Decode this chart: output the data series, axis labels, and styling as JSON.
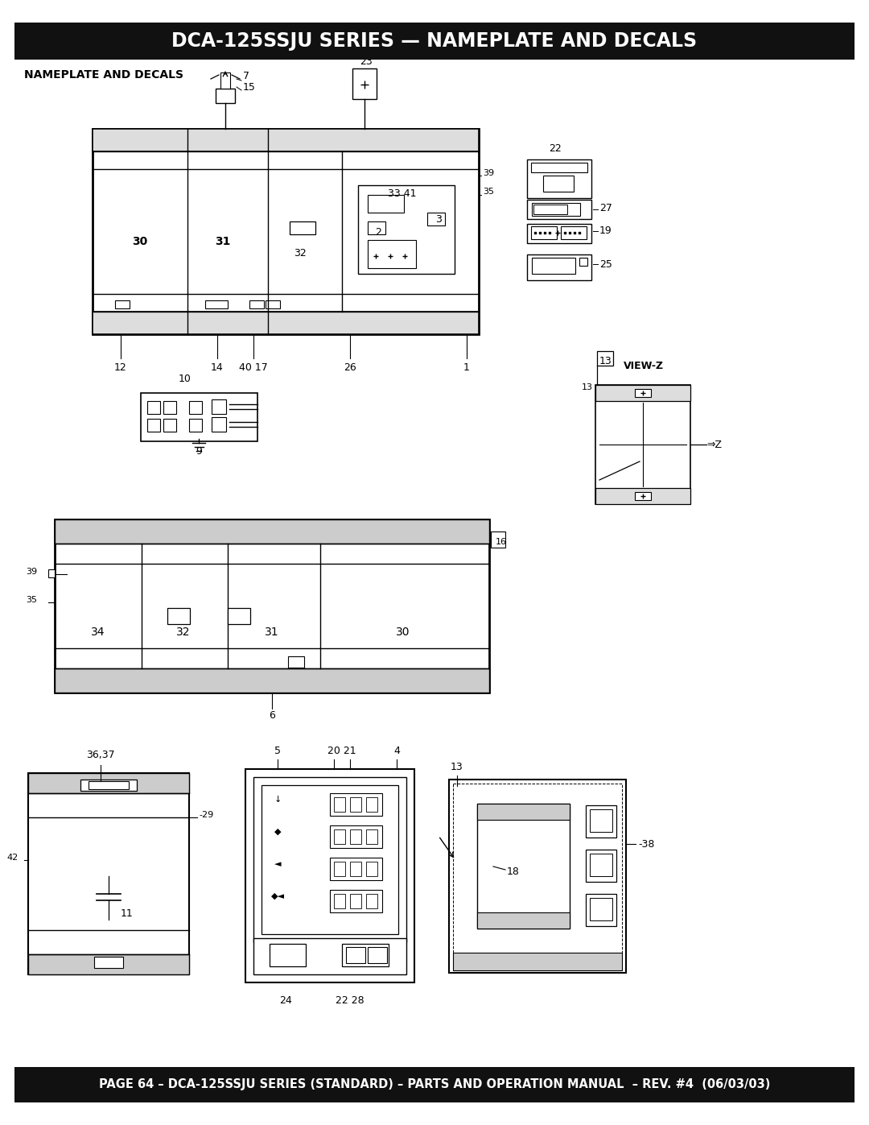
{
  "title": "DCA-125SSJU SERIES — NAMEPLATE AND DECALS",
  "subtitle": "NAMEPLATE AND DECALS",
  "footer": "PAGE 64 – DCA-125SSJU SERIES (STANDARD) – PARTS AND OPERATION MANUAL  – REV. #4  (06/03/03)",
  "bg_color": "#ffffff",
  "header_bg": "#111111",
  "header_fg": "#ffffff",
  "footer_bg": "#111111",
  "footer_fg": "#ffffff",
  "line_color": "#000000",
  "title_fontsize": 17,
  "footer_fontsize": 10.5,
  "subtitle_fontsize": 10
}
